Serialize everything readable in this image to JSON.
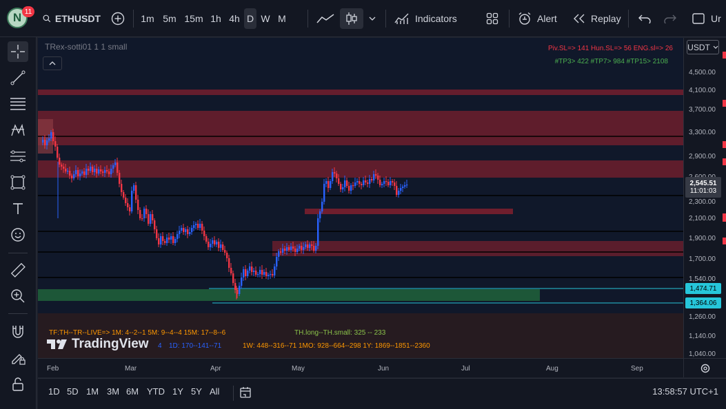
{
  "topbar": {
    "avatar_letter": "N",
    "notification_count": "11",
    "symbol": "ETHUSDT",
    "intervals": [
      "1m",
      "5m",
      "15m",
      "1h",
      "4h",
      "D",
      "W",
      "M"
    ],
    "selected_interval": "D",
    "indicators_label": "Indicators",
    "alert_label": "Alert",
    "replay_label": "Replay",
    "more_label": "Ur"
  },
  "legend": {
    "indicator_name": "TRex-sotti01 1 1 small"
  },
  "annotations": {
    "sl_line": "Piv.SL=> 141  Hun.SL=> 56  ENG.sl=> 26",
    "tp_line": "#TP3> 422  #TP7> 984  #TP15> 2108",
    "tf_line": "TF:TH--TR--LIVE=>   1M: 4--2--1     5M: 9--4--4     15M: 17--8--6",
    "th_line": "TH.long--TH.small: 325 -- 233",
    "d_line": "1D: 170--141--71",
    "mtf_line": "1W: 448--316--71     1MO: 928--664--298     1Y: 1869--1851--2360",
    "hidden_suffix": "4",
    "watermark": "TradingView"
  },
  "price_axis": {
    "currency": "USDT",
    "ticks": [
      "4,500.00",
      "4,100.00",
      "3,700.00",
      "3,300.00",
      "2,900.00",
      "2,600.00",
      "2,300.00",
      "2,100.00",
      "1,900.00",
      "1,700.00",
      "1,540.00",
      "1,260.00",
      "1,140.00",
      "1,040.00"
    ],
    "current_price": "2,545.51",
    "countdown": "11:01:03",
    "level_1": "1,474.71",
    "level_2": "1,364.06"
  },
  "time_axis": {
    "labels": [
      "Feb",
      "Mar",
      "Apr",
      "May",
      "Jun",
      "Jul",
      "Aug",
      "Sep"
    ]
  },
  "bottombar": {
    "ranges": [
      "1D",
      "5D",
      "1M",
      "3M",
      "6M",
      "YTD",
      "1Y",
      "5Y",
      "All"
    ],
    "clock": "13:58:57 UTC+1"
  },
  "colors": {
    "up": "#2962ff",
    "down": "#f23645",
    "accent_cyan": "#26c6da",
    "zone_red": "#7a1f2e",
    "zone_green": "#1f5e3a"
  }
}
